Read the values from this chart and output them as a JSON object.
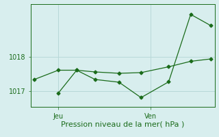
{
  "background_color": "#d8eeee",
  "grid_color": "#b8d8d8",
  "line_color": "#1a6b1a",
  "marker_color": "#1a6b1a",
  "xlabel": "Pression niveau de la mer( hPa )",
  "xlabel_fontsize": 8,
  "tick_label_fontsize": 7,
  "xlim": [
    0,
    10
  ],
  "ylim": [
    1016.55,
    1019.55
  ],
  "yticks": [
    1017,
    1018
  ],
  "x_jeu": 1.5,
  "x_ven": 6.5,
  "line1_x": [
    0.2,
    1.5,
    2.5,
    3.5,
    4.8,
    6.0,
    7.5,
    8.7,
    9.8
  ],
  "line1_y": [
    1017.35,
    1017.62,
    1017.62,
    1017.57,
    1017.53,
    1017.55,
    1017.72,
    1017.88,
    1017.95
  ],
  "line2_x": [
    1.5,
    2.5,
    3.5,
    4.8,
    6.0,
    7.5,
    8.7,
    9.8
  ],
  "line2_y": [
    1016.95,
    1017.62,
    1017.35,
    1017.27,
    1016.82,
    1017.28,
    1019.25,
    1018.92
  ]
}
